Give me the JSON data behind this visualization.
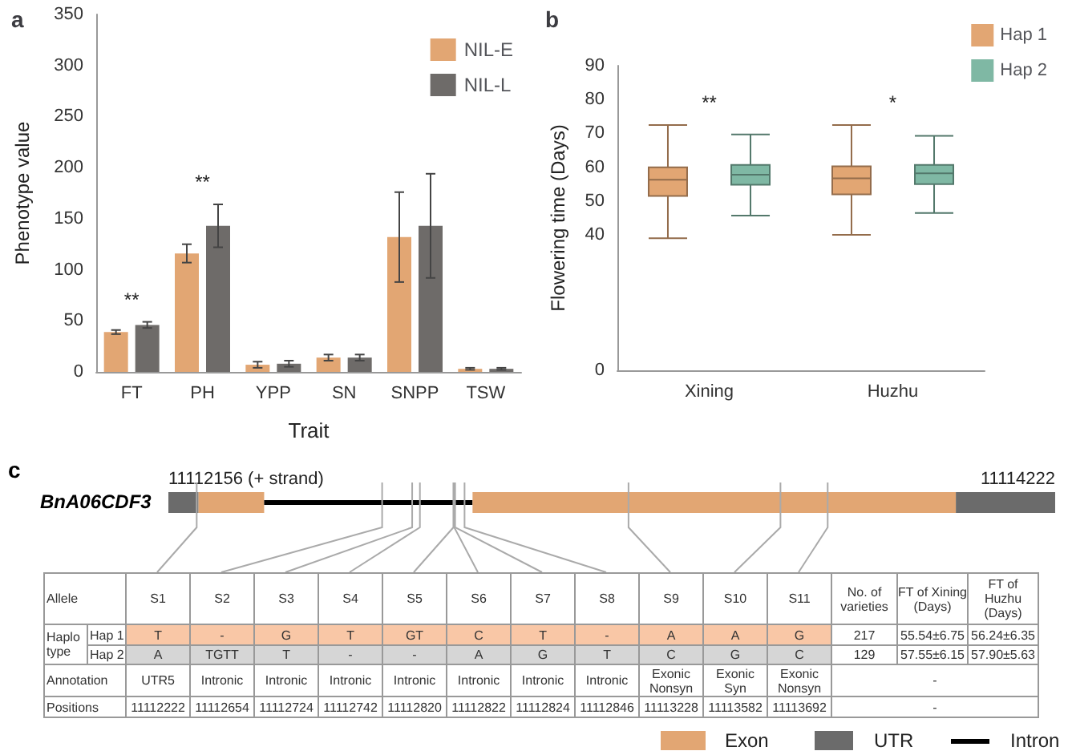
{
  "chart_data": [
    {
      "type": "bar",
      "title": "a",
      "xlabel": "Trait",
      "ylabel": "Phenotype value",
      "categories": [
        "FT",
        "PH",
        "YPP",
        "SN",
        "SNPP",
        "TSW"
      ],
      "series": [
        {
          "name": "NIL-E",
          "color": "#e2a673",
          "values": [
            39,
            116,
            7,
            14,
            132,
            3
          ],
          "errors": [
            2,
            9,
            3,
            3,
            44,
            1
          ]
        },
        {
          "name": "NIL-L",
          "color": "#6e6b69",
          "values": [
            46,
            143,
            8,
            14,
            143,
            3
          ],
          "errors": [
            3,
            21,
            3,
            3,
            51,
            1
          ]
        }
      ],
      "ylim": [
        0,
        350
      ],
      "yticks": [
        0,
        50,
        100,
        150,
        200,
        250,
        300,
        350
      ],
      "grid": false,
      "legend": "top right",
      "annotations": [
        "**",
        "**"
      ]
    },
    {
      "type": "box",
      "title": "b",
      "ylabel": "Flowering time (Days)",
      "categories": [
        "Xining",
        "Huzhu"
      ],
      "series": [
        {
          "name": "Hap 1",
          "color": "#e2a673",
          "boxes": [
            {
              "low": 39,
              "q1": 51.5,
              "median": 56.3,
              "q3": 60,
              "high": 72.5
            },
            {
              "low": 40,
              "q1": 52,
              "median": 56.7,
              "q3": 60.3,
              "high": 72.5
            }
          ]
        },
        {
          "name": "Hap 2",
          "color": "#7fb8a4",
          "boxes": [
            {
              "low": 45.7,
              "q1": 54.8,
              "median": 57.8,
              "q3": 60.7,
              "high": 69.7
            },
            {
              "low": 46.5,
              "q1": 55,
              "median": 58.2,
              "q3": 60.7,
              "high": 69.3
            }
          ]
        }
      ],
      "ylim": [
        0,
        90
      ],
      "yticks": [
        0,
        40,
        50,
        60,
        70,
        80,
        90
      ],
      "grid": false,
      "legend": "top right",
      "annotations": [
        "**",
        "*"
      ]
    },
    {
      "type": "other",
      "title": "c",
      "colors": [
        "#e2a673",
        "#6b6b6b",
        "#000000"
      ],
      "annotations": [
        "BnA06CDF3",
        "11112156 (+ strand)",
        "11114222",
        "Allele",
        "S1",
        "S2",
        "S3",
        "S4",
        "S5",
        "S6",
        "S7",
        "S8",
        "S9",
        "S10",
        "S11",
        "No. of varieties",
        "FT of Xining (Days)",
        "FT of Huzhu (Days)",
        "Haplo type",
        "Hap 1",
        "T",
        "-",
        "G",
        "T",
        "GT",
        "C",
        "T",
        "-",
        "A",
        "A",
        "G",
        "217",
        "55.54±6.75",
        "56.24±6.35",
        "Hap 2",
        "A",
        "TGTT",
        "T",
        "-",
        "-",
        "A",
        "G",
        "T",
        "C",
        "G",
        "C",
        "129",
        "57.55±6.15",
        "57.90±5.63",
        "Annotation",
        "UTR5",
        "Intronic",
        "Intronic",
        "Intronic",
        "Intronic",
        "Intronic",
        "Intronic",
        "Intronic",
        "Exonic Nonsyn",
        "Exonic Syn",
        "Exonic Nonsyn",
        "-",
        "Positions",
        "11112222",
        "11112654",
        "11112724",
        "11112742",
        "11112820",
        "11112822",
        "11112824",
        "11112846",
        "11113228",
        "11113582",
        "11113692",
        "-",
        "Exon",
        "UTR",
        "Intron"
      ]
    }
  ]
}
